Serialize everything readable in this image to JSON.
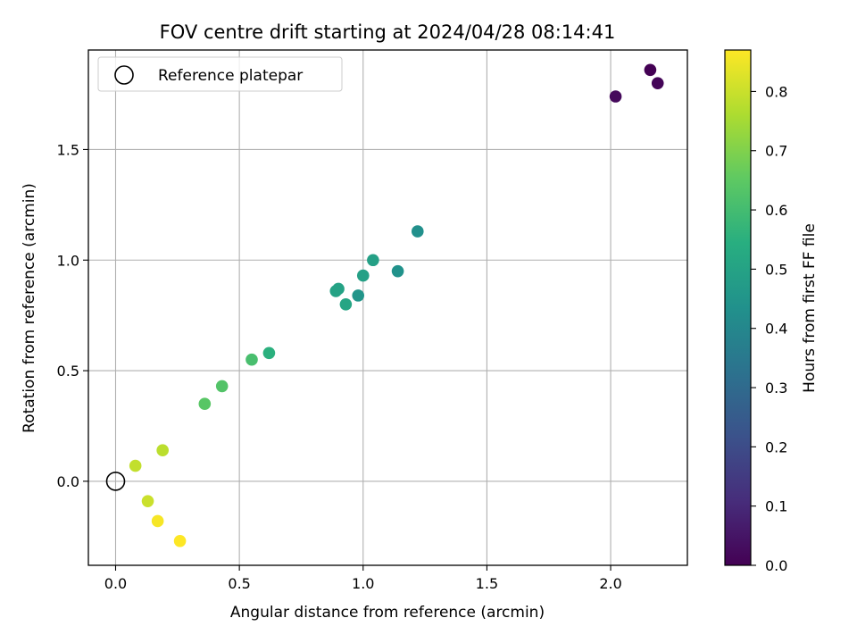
{
  "chart_data": {
    "type": "scatter",
    "title": "FOV centre drift starting at 2024/04/28 08:14:41",
    "xlabel": "Angular distance from reference (arcmin)",
    "ylabel": "Rotation from reference (arcmin)",
    "xlim": [
      -0.11,
      2.31
    ],
    "ylim": [
      -0.38,
      1.95
    ],
    "xticks": [
      0.0,
      0.5,
      1.0,
      1.5,
      2.0
    ],
    "yticks": [
      0.0,
      0.5,
      1.0,
      1.5
    ],
    "xtick_labels": [
      "0.0",
      "0.5",
      "1.0",
      "1.5",
      "2.0"
    ],
    "ytick_labels": [
      "0.0",
      "0.5",
      "1.0",
      "1.5"
    ],
    "grid": true,
    "legend": {
      "placement": "top-left",
      "entries": [
        "Reference platepar"
      ]
    },
    "reference_point": {
      "x": 0.0,
      "y": 0.0
    },
    "colorbar": {
      "label": "Hours from first FF file",
      "colormap": "viridis",
      "range": [
        0.0,
        0.87
      ],
      "ticks": [
        0.0,
        0.1,
        0.2,
        0.3,
        0.4,
        0.5,
        0.6,
        0.7,
        0.8
      ],
      "tick_labels": [
        "0.0",
        "0.1",
        "0.2",
        "0.3",
        "0.4",
        "0.5",
        "0.6",
        "0.7",
        "0.8"
      ]
    },
    "points": [
      {
        "x": 2.16,
        "y": 1.86,
        "hours": 0.0
      },
      {
        "x": 2.19,
        "y": 1.8,
        "hours": 0.01
      },
      {
        "x": 2.02,
        "y": 1.74,
        "hours": 0.02
      },
      {
        "x": 1.22,
        "y": 1.13,
        "hours": 0.43
      },
      {
        "x": 1.14,
        "y": 0.95,
        "hours": 0.44
      },
      {
        "x": 0.98,
        "y": 0.84,
        "hours": 0.45
      },
      {
        "x": 1.04,
        "y": 1.0,
        "hours": 0.49
      },
      {
        "x": 1.0,
        "y": 0.93,
        "hours": 0.49
      },
      {
        "x": 0.9,
        "y": 0.87,
        "hours": 0.5
      },
      {
        "x": 0.89,
        "y": 0.86,
        "hours": 0.5
      },
      {
        "x": 0.93,
        "y": 0.8,
        "hours": 0.51
      },
      {
        "x": 0.62,
        "y": 0.58,
        "hours": 0.55
      },
      {
        "x": 0.55,
        "y": 0.55,
        "hours": 0.61
      },
      {
        "x": 0.43,
        "y": 0.43,
        "hours": 0.63
      },
      {
        "x": 0.36,
        "y": 0.35,
        "hours": 0.64
      },
      {
        "x": 0.19,
        "y": 0.14,
        "hours": 0.78
      },
      {
        "x": 0.08,
        "y": 0.07,
        "hours": 0.79
      },
      {
        "x": 0.13,
        "y": -0.09,
        "hours": 0.8
      },
      {
        "x": 0.17,
        "y": -0.18,
        "hours": 0.86
      },
      {
        "x": 0.26,
        "y": -0.27,
        "hours": 0.87
      }
    ]
  }
}
